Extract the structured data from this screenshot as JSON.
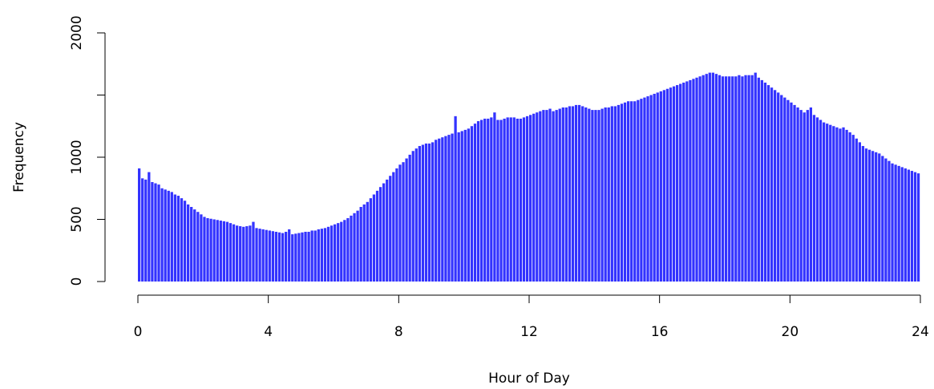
{
  "chart_data": {
    "type": "bar",
    "title": "",
    "xlabel": "Hour of Day",
    "ylabel": "Frequency",
    "xlim": [
      0,
      24
    ],
    "ylim": [
      0,
      2000
    ],
    "xticks": [
      0,
      4,
      8,
      12,
      16,
      20,
      24
    ],
    "xtick_labels": [
      "0",
      "4",
      "8",
      "12",
      "16",
      "20",
      "24"
    ],
    "yticks": [
      0,
      500,
      1000,
      1500,
      2000
    ],
    "ytick_labels": [
      "0",
      "500",
      "1000",
      "",
      "2000"
    ],
    "bin_width_hours": 0.1,
    "bar_color": "#3333ff",
    "grid": false,
    "legend": "none",
    "values": [
      910,
      830,
      820,
      880,
      800,
      790,
      780,
      750,
      740,
      730,
      720,
      700,
      690,
      670,
      650,
      620,
      600,
      580,
      560,
      540,
      520,
      510,
      505,
      500,
      495,
      490,
      485,
      480,
      470,
      460,
      450,
      445,
      440,
      445,
      450,
      480,
      430,
      425,
      420,
      415,
      410,
      405,
      400,
      395,
      390,
      400,
      420,
      380,
      385,
      390,
      395,
      400,
      400,
      410,
      410,
      420,
      425,
      430,
      440,
      450,
      460,
      470,
      480,
      495,
      510,
      530,
      550,
      570,
      600,
      620,
      640,
      670,
      700,
      730,
      760,
      790,
      820,
      850,
      880,
      910,
      940,
      960,
      990,
      1020,
      1050,
      1070,
      1090,
      1100,
      1110,
      1110,
      1120,
      1140,
      1150,
      1160,
      1170,
      1180,
      1190,
      1330,
      1200,
      1210,
      1220,
      1230,
      1250,
      1270,
      1290,
      1300,
      1310,
      1310,
      1320,
      1360,
      1300,
      1300,
      1310,
      1320,
      1320,
      1320,
      1310,
      1310,
      1320,
      1330,
      1340,
      1350,
      1360,
      1370,
      1380,
      1380,
      1390,
      1370,
      1380,
      1390,
      1400,
      1400,
      1410,
      1410,
      1420,
      1420,
      1410,
      1400,
      1390,
      1380,
      1380,
      1380,
      1390,
      1400,
      1400,
      1410,
      1410,
      1420,
      1430,
      1440,
      1450,
      1450,
      1450,
      1460,
      1470,
      1480,
      1490,
      1500,
      1510,
      1520,
      1530,
      1540,
      1550,
      1560,
      1570,
      1580,
      1590,
      1600,
      1610,
      1620,
      1630,
      1640,
      1650,
      1660,
      1670,
      1680,
      1680,
      1670,
      1660,
      1650,
      1650,
      1650,
      1650,
      1650,
      1660,
      1650,
      1660,
      1660,
      1660,
      1680,
      1640,
      1620,
      1600,
      1580,
      1560,
      1540,
      1520,
      1500,
      1480,
      1460,
      1440,
      1420,
      1400,
      1380,
      1360,
      1380,
      1400,
      1340,
      1320,
      1300,
      1280,
      1270,
      1260,
      1250,
      1240,
      1230,
      1240,
      1220,
      1200,
      1180,
      1150,
      1120,
      1090,
      1070,
      1060,
      1050,
      1040,
      1030,
      1010,
      990,
      970,
      950,
      940,
      930,
      920,
      910,
      900,
      890,
      880,
      870
    ]
  }
}
